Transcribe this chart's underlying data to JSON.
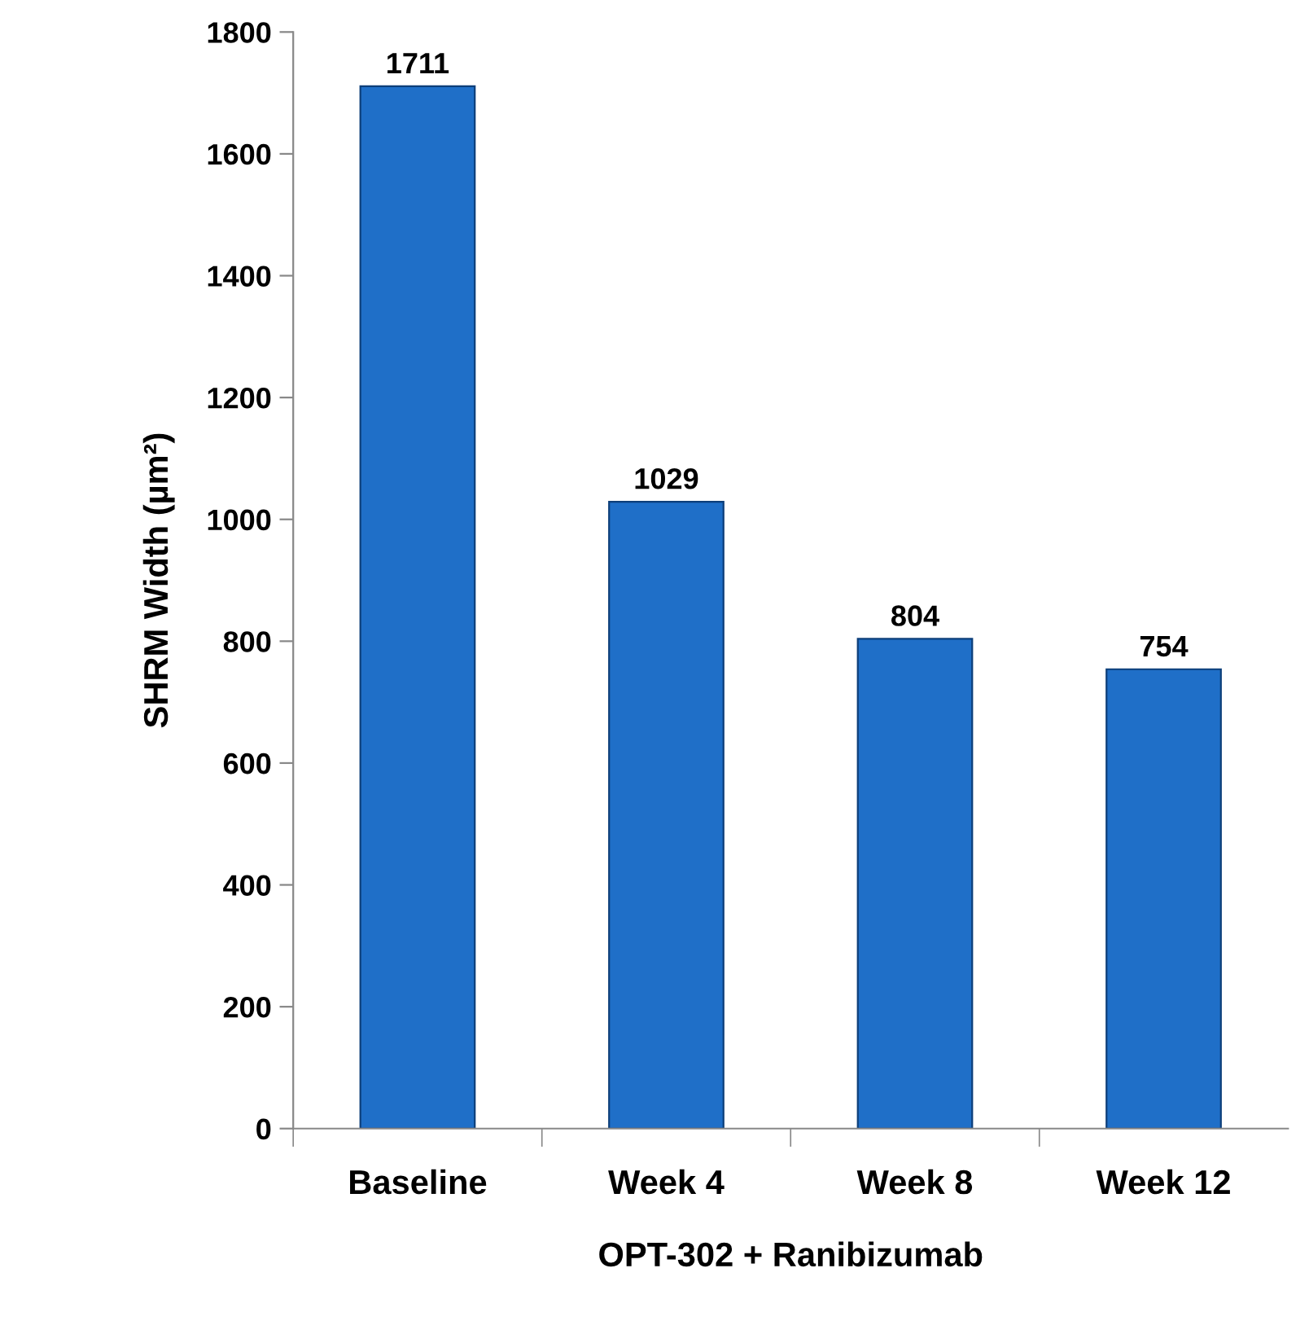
{
  "chart_data": {
    "type": "bar",
    "xlabel": "OPT-302 + Ranibizumab",
    "ylabel": "SHRM Width (µm²)",
    "categories": [
      "Baseline",
      "Week 4",
      "Week 8",
      "Week 12"
    ],
    "values": [
      1711,
      1029,
      804,
      754
    ],
    "color": "#1f6fc8",
    "ylim": [
      0,
      1800
    ],
    "yticks": [
      0,
      200,
      400,
      600,
      800,
      1000,
      1200,
      1400,
      1600,
      1800
    ],
    "data_labels": true,
    "grid": false,
    "legend": false
  }
}
